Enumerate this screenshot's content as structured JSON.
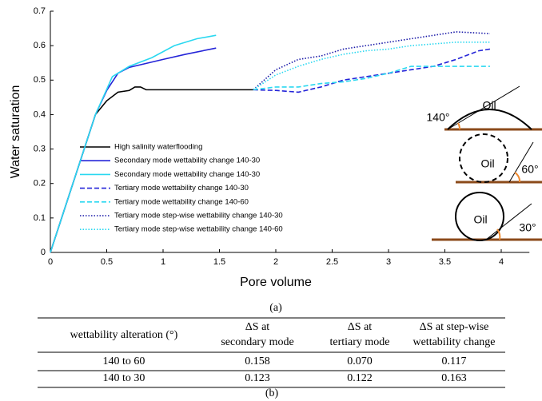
{
  "chart_data": {
    "type": "line",
    "x_label": "Pore volume",
    "y_label": "Water saturation",
    "xlim": [
      0,
      4.25
    ],
    "ylim": [
      0,
      0.7
    ],
    "xticks": [
      0,
      0.5,
      1,
      1.5,
      2,
      2.5,
      3,
      3.5,
      4
    ],
    "yticks": [
      0,
      0.1,
      0.2,
      0.3,
      0.4,
      0.5,
      0.6,
      0.7
    ],
    "series": [
      {
        "name": "High salinity waterflooding",
        "color": "#000000",
        "style": "solid",
        "x": [
          0,
          0.2,
          0.4,
          0.5,
          0.6,
          0.7,
          0.75,
          0.8,
          0.85,
          1,
          1.5,
          1.8
        ],
        "values": [
          0,
          0.2,
          0.4,
          0.44,
          0.465,
          0.47,
          0.48,
          0.48,
          0.472,
          0.472,
          0.472,
          0.472
        ]
      },
      {
        "name": "Secondary mode wettability change 140-30",
        "color": "#2424d8",
        "style": "solid",
        "x": [
          0,
          0.4,
          0.5,
          0.6,
          0.7,
          1,
          1.2,
          1.47
        ],
        "values": [
          0,
          0.4,
          0.47,
          0.52,
          0.537,
          0.56,
          0.575,
          0.593
        ]
      },
      {
        "name": "Secondary mode wettability change 140-30",
        "color": "#2ad8f0",
        "style": "solid",
        "x": [
          0,
          0.4,
          0.55,
          0.7,
          0.9,
          1.1,
          1.3,
          1.47
        ],
        "values": [
          0,
          0.4,
          0.51,
          0.54,
          0.565,
          0.6,
          0.62,
          0.63
        ]
      },
      {
        "name": "Tertiary mode wettability change 140-30",
        "color": "#2424d8",
        "style": "dashed",
        "x": [
          1.8,
          2,
          2.2,
          2.4,
          2.6,
          2.8,
          3,
          3.2,
          3.4,
          3.6,
          3.8,
          3.9
        ],
        "values": [
          0.472,
          0.47,
          0.465,
          0.48,
          0.5,
          0.51,
          0.52,
          0.53,
          0.54,
          0.56,
          0.585,
          0.59
        ]
      },
      {
        "name": "Tertiary mode wettability change 140-60",
        "color": "#2ad8f0",
        "style": "dashed",
        "x": [
          1.8,
          2,
          2.2,
          2.4,
          2.6,
          2.8,
          3,
          3.2,
          3.4,
          3.6,
          3.9
        ],
        "values": [
          0.472,
          0.48,
          0.48,
          0.49,
          0.495,
          0.505,
          0.52,
          0.54,
          0.54,
          0.54,
          0.54
        ]
      },
      {
        "name": "Tertiary mode step-wise wettability change 140-30",
        "color": "#1a1aa8",
        "style": "dotted",
        "x": [
          1.8,
          2,
          2.2,
          2.4,
          2.6,
          2.8,
          3,
          3.2,
          3.4,
          3.6,
          3.9
        ],
        "values": [
          0.472,
          0.53,
          0.56,
          0.57,
          0.59,
          0.6,
          0.61,
          0.62,
          0.63,
          0.64,
          0.635
        ]
      },
      {
        "name": "Tertiary mode  step-wise wettability change 140-60",
        "color": "#2ad8f0",
        "style": "dotted",
        "x": [
          1.8,
          2,
          2.2,
          2.4,
          2.6,
          2.8,
          3,
          3.2,
          3.4,
          3.6,
          3.9
        ],
        "values": [
          0.472,
          0.515,
          0.54,
          0.56,
          0.575,
          0.585,
          0.59,
          0.6,
          0.605,
          0.61,
          0.61
        ]
      }
    ],
    "annotations": [
      "140°",
      "Oil",
      "Oil",
      "60°",
      "Oil",
      "30°"
    ],
    "caption": "(a)"
  },
  "table": {
    "header": [
      [
        "wettability alteration (°)"
      ],
      [
        "ΔS at",
        "secondary mode"
      ],
      [
        "ΔS at",
        "tertiary mode"
      ],
      [
        "ΔS at step-wise",
        "wettability change"
      ]
    ],
    "rows": [
      [
        "140 to 60",
        "0.158",
        "0.070",
        "0.117"
      ],
      [
        "140 to 30",
        "0.123",
        "0.122",
        "0.163"
      ]
    ],
    "caption": "(b)"
  }
}
